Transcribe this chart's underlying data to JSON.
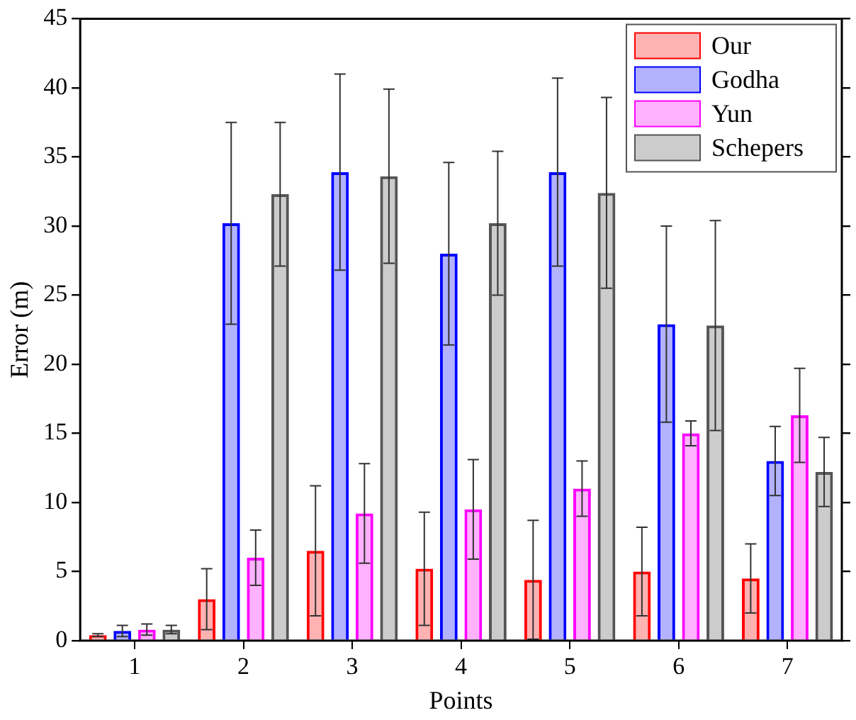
{
  "chart_data": {
    "type": "bar",
    "xlabel": "Points",
    "ylabel": "Error (m)",
    "categories": [
      "1",
      "2",
      "3",
      "4",
      "5",
      "6",
      "7"
    ],
    "series": [
      {
        "name": "Our",
        "color": "#ff0000",
        "values": [
          0.4,
          3.0,
          6.5,
          5.2,
          4.4,
          5.0,
          4.5
        ],
        "errors": [
          0.1,
          2.2,
          4.7,
          4.1,
          4.3,
          3.2,
          2.5
        ]
      },
      {
        "name": "Godha",
        "color": "#0000ff",
        "values": [
          0.7,
          30.2,
          33.9,
          28.0,
          33.9,
          22.9,
          13.0
        ],
        "errors": [
          0.4,
          7.3,
          7.1,
          6.6,
          6.8,
          7.1,
          2.5
        ]
      },
      {
        "name": "Yun",
        "color": "#ff00ff",
        "values": [
          0.8,
          6.0,
          9.2,
          9.5,
          11.0,
          15.0,
          16.3
        ],
        "errors": [
          0.4,
          2.0,
          3.6,
          3.6,
          2.0,
          0.9,
          3.4
        ]
      },
      {
        "name": "Schepers",
        "color": "#555555",
        "values": [
          0.8,
          32.3,
          33.6,
          30.2,
          32.4,
          22.8,
          12.2
        ],
        "errors": [
          0.3,
          5.2,
          6.3,
          5.2,
          6.9,
          7.6,
          2.5
        ]
      }
    ],
    "ylim": [
      0,
      45
    ],
    "yticks": [
      0,
      5,
      10,
      15,
      20,
      25,
      30,
      35,
      40,
      45
    ],
    "grid": false,
    "legend": "top right"
  }
}
